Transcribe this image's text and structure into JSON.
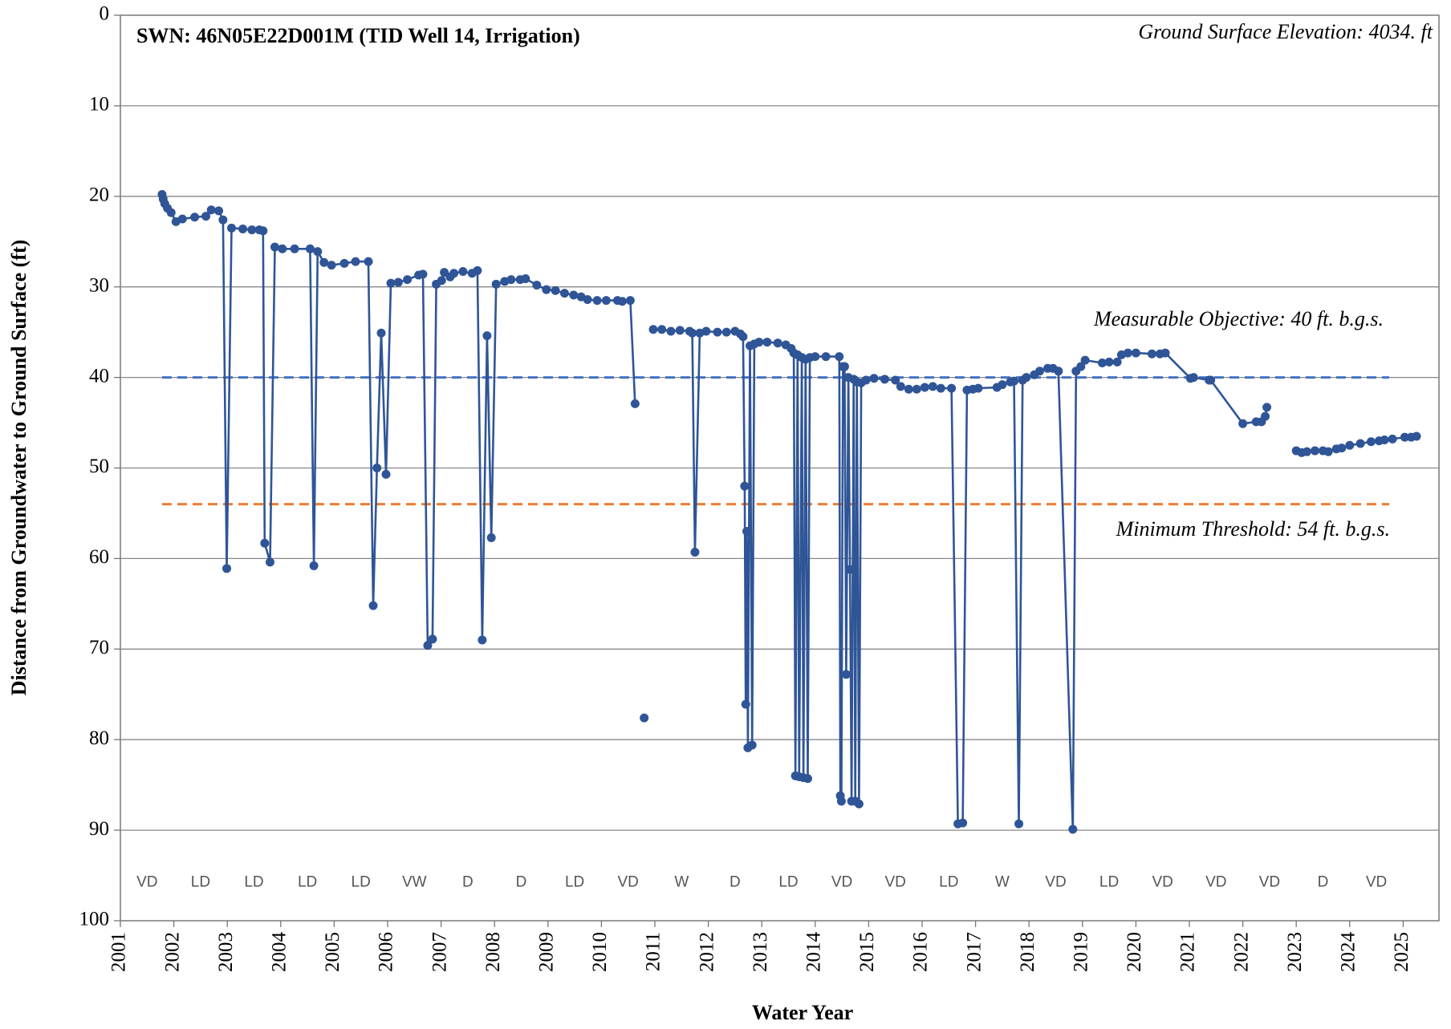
{
  "chart_data": {
    "type": "line",
    "title": "SWN: 46N05E22D001M (TID Well 14, Irrigation)",
    "subtitle": "Ground Surface Elevation: 4034. ft",
    "x_label": "Water Year",
    "y_label": "Distance from Groundwater to Ground Surface (ft)",
    "xlim": [
      2001,
      2025.67
    ],
    "xticks": [
      2001,
      2002,
      2003,
      2004,
      2005,
      2006,
      2007,
      2008,
      2009,
      2010,
      2011,
      2012,
      2013,
      2014,
      2015,
      2016,
      2017,
      2018,
      2019,
      2020,
      2021,
      2022,
      2023,
      2024,
      2025
    ],
    "ylim": [
      0,
      100
    ],
    "yticks": [
      0,
      10,
      20,
      30,
      40,
      50,
      60,
      70,
      80,
      90,
      100
    ],
    "y_inverted": true,
    "grid": true,
    "water_year_types": [
      "VD",
      "LD",
      "LD",
      "LD",
      "LD",
      "VW",
      "D",
      "D",
      "LD",
      "VD",
      "W",
      "D",
      "LD",
      "VD",
      "VD",
      "LD",
      "W",
      "VD",
      "LD",
      "VD",
      "VD",
      "VD",
      "D",
      "VD"
    ],
    "reference_lines": [
      {
        "label": "Measurable Objective: 40 ft. b.g.s.",
        "value": 40,
        "color": "#4472c4"
      },
      {
        "label": "Minimum Threshold: 54 ft. b.g.s.",
        "value": 54,
        "color": "#ed7d31"
      }
    ],
    "x": [
      2001.78,
      2001.8,
      2001.83,
      2001.88,
      2001.95,
      2002.04,
      2002.16,
      2002.39,
      2002.6,
      2002.7,
      2002.84,
      2002.92,
      2002.99,
      2003.08,
      2003.29,
      2003.46,
      2003.6,
      2003.67,
      2003.7,
      2003.8,
      2003.89,
      2004.03,
      2004.26,
      2004.55,
      2004.62,
      2004.69,
      2004.81,
      2004.95,
      2005.19,
      2005.4,
      2005.64,
      2005.73,
      2005.8,
      2005.88,
      2005.97,
      2006.06,
      2006.2,
      2006.37,
      2006.58,
      2006.66,
      2006.75,
      2006.84,
      2006.91,
      2007.01,
      2007.06,
      2007.17,
      2007.24,
      2007.41,
      2007.58,
      2007.68,
      2007.77,
      2007.86,
      2007.94,
      2008.03,
      2008.19,
      2008.31,
      2008.48,
      2008.58,
      2008.79,
      2008.97,
      2009.14,
      2009.31,
      2009.48,
      2009.62,
      2009.74,
      2009.92,
      2010.09,
      2010.3,
      2010.39,
      2010.54,
      2010.63,
      null,
      2010.8,
      null,
      2010.97,
      2011.13,
      2011.3,
      2011.47,
      2011.65,
      2011.7,
      2011.75,
      2011.84,
      2011.96,
      2012.17,
      2012.34,
      2012.5,
      2012.6,
      2012.65,
      2012.68,
      2012.7,
      2012.72,
      2012.74,
      2012.78,
      2012.82,
      2012.86,
      2012.95,
      2013.1,
      2013.3,
      2013.45,
      2013.55,
      2013.6,
      2013.63,
      2013.67,
      2013.7,
      2013.75,
      2013.78,
      2013.82,
      2013.86,
      2013.9,
      2014.0,
      2014.2,
      2014.45,
      2014.47,
      2014.49,
      2014.52,
      2014.55,
      2014.58,
      2014.62,
      2014.65,
      2014.68,
      2014.72,
      2014.75,
      2014.78,
      2014.82,
      2014.86,
      2014.95,
      2015.1,
      2015.3,
      2015.5,
      2015.6,
      2015.75,
      2015.9,
      2016.05,
      2016.2,
      2016.35,
      2016.55,
      2016.67,
      2016.76,
      2016.84,
      2016.95,
      2017.05,
      2017.4,
      2017.5,
      2017.65,
      2017.72,
      2017.81,
      2017.88,
      2017.95,
      2018.1,
      2018.2,
      2018.35,
      2018.45,
      2018.55,
      2018.82,
      2018.88,
      2018.97,
      2019.05,
      2019.37,
      2019.5,
      2019.65,
      2019.73,
      2019.85,
      2020.0,
      2020.3,
      2020.45,
      2020.55,
      2021.02,
      2021.08,
      2021.37,
      2021.4,
      2022.0,
      2022.25,
      2022.35,
      2022.42,
      2022.45,
      null,
      2023.0,
      2023.1,
      2023.2,
      2023.35,
      2023.5,
      2023.6,
      2023.75,
      2023.85,
      2024.0,
      2024.2,
      2024.4,
      2024.55,
      2024.65,
      2024.8,
      2025.03,
      2025.15,
      2025.25
    ],
    "series": [
      {
        "name": "Depth to water",
        "color": "#2f5597",
        "values": [
          19.8,
          20.3,
          20.8,
          21.3,
          21.8,
          22.8,
          22.5,
          22.3,
          22.2,
          21.5,
          21.6,
          22.6,
          61.1,
          23.5,
          23.6,
          23.7,
          23.7,
          23.8,
          58.3,
          60.4,
          25.6,
          25.8,
          25.8,
          25.8,
          60.8,
          26.1,
          27.3,
          27.6,
          27.4,
          27.2,
          27.2,
          65.2,
          50.0,
          35.1,
          50.7,
          29.6,
          29.5,
          29.2,
          28.7,
          28.6,
          69.6,
          68.9,
          29.7,
          29.3,
          28.4,
          28.9,
          28.5,
          28.3,
          28.5,
          28.2,
          69.0,
          35.4,
          57.7,
          29.7,
          29.4,
          29.2,
          29.2,
          29.1,
          29.8,
          30.3,
          30.4,
          30.7,
          30.9,
          31.1,
          31.4,
          31.5,
          31.5,
          31.5,
          31.6,
          31.5,
          42.9,
          null,
          77.6,
          null,
          34.7,
          34.7,
          34.9,
          34.8,
          34.9,
          35.1,
          59.3,
          35.1,
          34.9,
          35.0,
          35.0,
          34.9,
          35.2,
          35.5,
          52.0,
          76.1,
          57.0,
          80.9,
          36.5,
          80.6,
          36.3,
          36.1,
          36.1,
          36.2,
          36.4,
          36.8,
          37.3,
          84.0,
          37.5,
          84.1,
          37.8,
          84.2,
          38.0,
          84.3,
          37.8,
          37.7,
          37.7,
          37.7,
          86.2,
          86.8,
          38.8,
          38.8,
          72.8,
          40.0,
          61.2,
          86.8,
          40.2,
          86.8,
          40.5,
          87.1,
          40.6,
          40.3,
          40.1,
          40.2,
          40.3,
          41.0,
          41.3,
          41.3,
          41.1,
          41.0,
          41.2,
          41.2,
          89.3,
          89.2,
          41.4,
          41.3,
          41.2,
          41.1,
          40.8,
          40.5,
          40.4,
          89.3,
          40.3,
          40.0,
          39.7,
          39.3,
          39.0,
          39.0,
          39.3,
          89.9,
          39.3,
          38.8,
          38.1,
          38.4,
          38.3,
          38.3,
          37.5,
          37.3,
          37.3,
          37.4,
          37.4,
          37.3,
          40.1,
          40.0,
          40.3,
          40.3,
          45.1,
          44.9,
          44.9,
          44.3,
          43.3,
          null,
          48.1,
          48.3,
          48.2,
          48.1,
          48.1,
          48.2,
          47.9,
          47.8,
          47.5,
          47.3,
          47.1,
          47.0,
          46.9,
          46.8,
          46.6,
          46.6,
          46.5
        ]
      }
    ]
  }
}
